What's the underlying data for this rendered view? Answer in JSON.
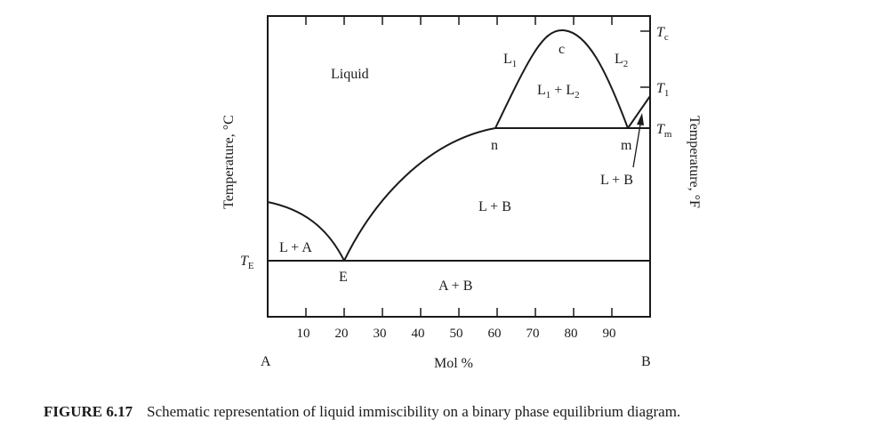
{
  "diagram": {
    "left_component": "A",
    "right_component": "B",
    "x_axis_label": "Mol %",
    "x_ticks": [
      "10",
      "20",
      "30",
      "40",
      "50",
      "60",
      "70",
      "80",
      "90"
    ],
    "y_label_left": "Temperature, °C",
    "y_label_right": "Temperature, °F",
    "temps": {
      "te": {
        "main": "T",
        "sub": "E"
      },
      "tc": {
        "main": "T",
        "sub": "c"
      },
      "t1": {
        "main": "T",
        "sub": "1"
      },
      "tm": {
        "main": "T",
        "sub": "m"
      }
    },
    "regions": {
      "liquid": "Liquid",
      "l1": {
        "main": "L",
        "sub": "1"
      },
      "l2": {
        "main": "L",
        "sub": "2"
      },
      "l1l2": {
        "a": "L",
        "a_sub": "1",
        "plus": " + ",
        "b": "L",
        "b_sub": "2"
      },
      "l_plus_a": "L + A",
      "l_plus_b_center": "L + B",
      "l_plus_b_right": "L + B",
      "a_plus_b": "A + B"
    },
    "points": {
      "c": "c",
      "n": "n",
      "m": "m",
      "e": "E"
    }
  },
  "caption": {
    "figure_label": "FIGURE 6.17",
    "text": "Schematic representation of liquid immiscibility on a binary phase equilibrium diagram."
  }
}
